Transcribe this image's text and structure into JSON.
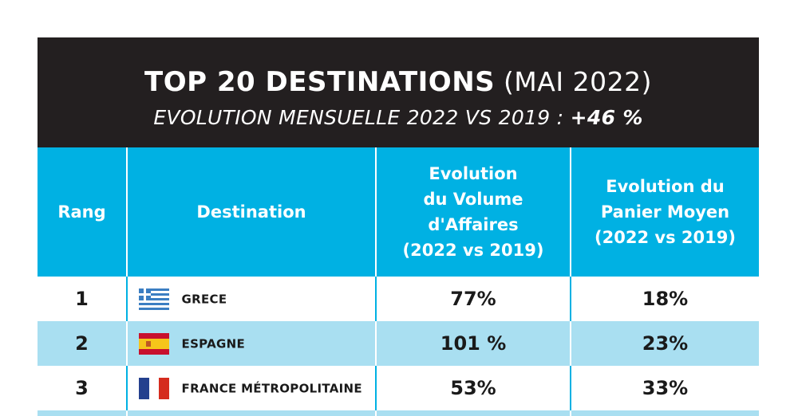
{
  "header": {
    "title_bold": "TOP 20 DESTINATIONS",
    "title_light": "(MAI 2022)",
    "subtitle_text": "EVOLUTION MENSUELLE 2022 VS 2019 : ",
    "subtitle_value": "+46 %"
  },
  "columns": {
    "rank": "Rang",
    "destination": "Destination",
    "volume_l1": "Evolution",
    "volume_l2": "du Volume",
    "volume_l3": "d'Affaires",
    "volume_l4": "(2022 vs 2019)",
    "basket_l1": "Evolution du",
    "basket_l2": "Panier Moyen",
    "basket_l3": "(2022 vs 2019)"
  },
  "rows": [
    {
      "rank": "1",
      "destination": "GRECE",
      "volume": "77%",
      "basket": "18%",
      "flag_icon": "greece-flag-icon"
    },
    {
      "rank": "2",
      "destination": "ESPAGNE",
      "volume": "101 %",
      "basket": "23%",
      "flag_icon": "spain-flag-icon"
    },
    {
      "rank": "3",
      "destination": "FRANCE MÉTROPOLITAINE",
      "volume": "53%",
      "basket": "33%",
      "flag_icon": "france-flag-icon"
    }
  ],
  "colors": {
    "header_bg": "#231f20",
    "column_header_bg": "#00b1e3",
    "alt_row_bg": "#a9dff1"
  }
}
